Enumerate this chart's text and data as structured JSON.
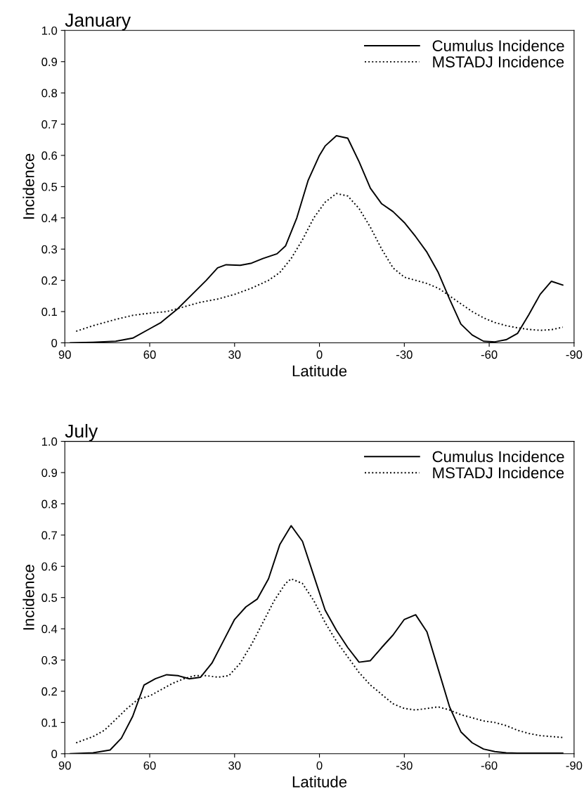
{
  "chart_data": [
    {
      "type": "line",
      "title": "January",
      "xlabel": "Latitude",
      "ylabel": "Incidence",
      "xlim": [
        90,
        -90
      ],
      "xticks": [
        90,
        60,
        30,
        0,
        -30,
        -60,
        -90
      ],
      "ylim": [
        0,
        1.0
      ],
      "yticks": [
        0,
        0.1,
        0.2,
        0.3,
        0.4,
        0.5,
        0.6,
        0.7,
        0.8,
        0.9,
        {
          "value": 1.0,
          "label": "1.0"
        }
      ],
      "grid": false,
      "legend": "top right",
      "series": [
        {
          "name": "Cumulus Incidence",
          "color": "#000000",
          "line_style": "solid",
          "x": [
            88,
            80,
            72,
            66,
            60,
            56,
            50,
            45,
            40,
            36,
            33,
            28,
            24,
            20,
            15,
            12,
            8,
            4,
            0,
            -2,
            -6,
            -10,
            -14,
            -18,
            -22,
            -26,
            -30,
            -34,
            -38,
            -42,
            -46,
            -50,
            -54,
            -58,
            -62,
            -66,
            -70,
            -74,
            -78,
            -82,
            -86
          ],
          "values": [
            0,
            0.002,
            0.005,
            0.015,
            0.045,
            0.065,
            0.11,
            0.155,
            0.2,
            0.24,
            0.25,
            0.248,
            0.255,
            0.27,
            0.285,
            0.31,
            0.4,
            0.52,
            0.6,
            0.63,
            0.663,
            0.655,
            0.58,
            0.495,
            0.445,
            0.42,
            0.385,
            0.34,
            0.29,
            0.225,
            0.14,
            0.06,
            0.025,
            0.005,
            0.003,
            0.01,
            0.03,
            0.09,
            0.155,
            0.197,
            0.185
          ]
        },
        {
          "name": "MSTADJ Incidence",
          "color": "#000000",
          "line_style": "dotted",
          "x": [
            86,
            80,
            72,
            66,
            60,
            54,
            48,
            42,
            36,
            30,
            24,
            18,
            14,
            10,
            6,
            2,
            -2,
            -6,
            -10,
            -14,
            -18,
            -22,
            -26,
            -30,
            -34,
            -38,
            -42,
            -46,
            -50,
            -54,
            -58,
            -62,
            -66,
            -70,
            -74,
            -78,
            -82,
            -86
          ],
          "values": [
            0.037,
            0.055,
            0.075,
            0.088,
            0.095,
            0.1,
            0.115,
            0.13,
            0.14,
            0.155,
            0.175,
            0.2,
            0.225,
            0.27,
            0.33,
            0.4,
            0.45,
            0.478,
            0.47,
            0.43,
            0.37,
            0.3,
            0.24,
            0.21,
            0.2,
            0.19,
            0.175,
            0.15,
            0.125,
            0.1,
            0.08,
            0.065,
            0.055,
            0.048,
            0.043,
            0.04,
            0.042,
            0.05
          ]
        }
      ]
    },
    {
      "type": "line",
      "title": "July",
      "xlabel": "Latitude",
      "ylabel": "Incidence",
      "xlim": [
        90,
        -90
      ],
      "xticks": [
        90,
        60,
        30,
        0,
        -30,
        -60,
        -90
      ],
      "ylim": [
        0,
        1.0
      ],
      "yticks": [
        0,
        0.1,
        0.2,
        0.3,
        0.4,
        0.5,
        0.6,
        0.7,
        0.8,
        0.9,
        {
          "value": 1.0,
          "label": "1.0"
        }
      ],
      "grid": false,
      "legend": "top right",
      "series": [
        {
          "name": "Cumulus Incidence",
          "color": "#000000",
          "line_style": "solid",
          "x": [
            88,
            80,
            74,
            70,
            66,
            62,
            58,
            54,
            50,
            46,
            42,
            38,
            34,
            30,
            26,
            22,
            18,
            14,
            10,
            6,
            2,
            -2,
            -6,
            -10,
            -14,
            -18,
            -22,
            -26,
            -30,
            -34,
            -38,
            -42,
            -46,
            -50,
            -54,
            -58,
            -62,
            -66,
            -70,
            -86
          ],
          "values": [
            0,
            0.003,
            0.012,
            0.05,
            0.12,
            0.22,
            0.24,
            0.253,
            0.25,
            0.24,
            0.245,
            0.29,
            0.36,
            0.43,
            0.47,
            0.495,
            0.56,
            0.67,
            0.73,
            0.68,
            0.57,
            0.46,
            0.395,
            0.34,
            0.293,
            0.298,
            0.34,
            0.38,
            0.43,
            0.445,
            0.39,
            0.27,
            0.15,
            0.07,
            0.035,
            0.015,
            0.007,
            0.003,
            0.002,
            0.002
          ]
        },
        {
          "name": "MSTADJ Incidence",
          "color": "#000000",
          "line_style": "dotted",
          "x": [
            86,
            80,
            76,
            72,
            68,
            64,
            60,
            56,
            52,
            48,
            44,
            40,
            36,
            32,
            28,
            24,
            20,
            16,
            12,
            10,
            6,
            2,
            -2,
            -6,
            -10,
            -14,
            -18,
            -22,
            -26,
            -30,
            -34,
            -38,
            -42,
            -46,
            -50,
            -54,
            -58,
            -62,
            -66,
            -70,
            -74,
            -78,
            -82,
            -86
          ],
          "values": [
            0.035,
            0.055,
            0.075,
            0.11,
            0.145,
            0.175,
            0.185,
            0.205,
            0.225,
            0.24,
            0.25,
            0.25,
            0.245,
            0.25,
            0.29,
            0.35,
            0.42,
            0.49,
            0.545,
            0.56,
            0.545,
            0.49,
            0.42,
            0.36,
            0.31,
            0.26,
            0.22,
            0.19,
            0.16,
            0.145,
            0.14,
            0.145,
            0.15,
            0.14,
            0.125,
            0.115,
            0.105,
            0.1,
            0.09,
            0.075,
            0.065,
            0.058,
            0.055,
            0.052
          ]
        }
      ]
    }
  ]
}
